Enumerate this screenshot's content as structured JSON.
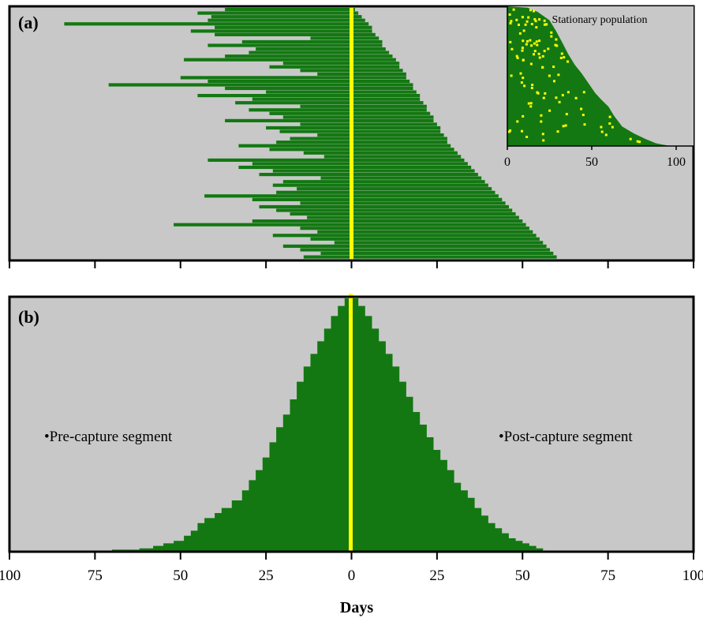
{
  "colors": {
    "panel_bg": "#c8c8c8",
    "fill": "#137812",
    "capture_line": "#ffff00",
    "frame": "#000000",
    "inset_dots": "#ffff00"
  },
  "chart_data": [
    {
      "id": "panel_a",
      "type": "bar",
      "orientation": "horizontal",
      "panel_label": "(a)",
      "description_rows": "each row is one individual; bar extends from pre-capture age (negative) to post-capture survival (positive); rows sorted by post-capture survival",
      "xlim": [
        -100,
        100
      ],
      "capture_line_x": 0,
      "rows": [
        {
          "pre": -37,
          "post": 1
        },
        {
          "pre": -45,
          "post": 2
        },
        {
          "pre": -41,
          "post": 3
        },
        {
          "pre": -42,
          "post": 4
        },
        {
          "pre": -84,
          "post": 5
        },
        {
          "pre": -40,
          "post": 6
        },
        {
          "pre": -47,
          "post": 6
        },
        {
          "pre": -40,
          "post": 7
        },
        {
          "pre": -12,
          "post": 8
        },
        {
          "pre": -32,
          "post": 9
        },
        {
          "pre": -42,
          "post": 9
        },
        {
          "pre": -28,
          "post": 10
        },
        {
          "pre": -30,
          "post": 11
        },
        {
          "pre": -37,
          "post": 12
        },
        {
          "pre": -49,
          "post": 13
        },
        {
          "pre": -20,
          "post": 14
        },
        {
          "pre": -24,
          "post": 14
        },
        {
          "pre": -15,
          "post": 15
        },
        {
          "pre": -10,
          "post": 16
        },
        {
          "pre": -50,
          "post": 16
        },
        {
          "pre": -42,
          "post": 17
        },
        {
          "pre": -71,
          "post": 18
        },
        {
          "pre": -37,
          "post": 18
        },
        {
          "pre": -25,
          "post": 19
        },
        {
          "pre": -45,
          "post": 20
        },
        {
          "pre": -29,
          "post": 20
        },
        {
          "pre": -34,
          "post": 21
        },
        {
          "pre": -15,
          "post": 22
        },
        {
          "pre": -30,
          "post": 22
        },
        {
          "pre": -24,
          "post": 23
        },
        {
          "pre": -20,
          "post": 24
        },
        {
          "pre": -37,
          "post": 24
        },
        {
          "pre": -15,
          "post": 25
        },
        {
          "pre": -25,
          "post": 26
        },
        {
          "pre": -21,
          "post": 26
        },
        {
          "pre": -10,
          "post": 27
        },
        {
          "pre": -18,
          "post": 28
        },
        {
          "pre": -22,
          "post": 28
        },
        {
          "pre": -33,
          "post": 29
        },
        {
          "pre": -24,
          "post": 30
        },
        {
          "pre": -14,
          "post": 31
        },
        {
          "pre": -8,
          "post": 32
        },
        {
          "pre": -42,
          "post": 33
        },
        {
          "pre": -29,
          "post": 34
        },
        {
          "pre": -33,
          "post": 35
        },
        {
          "pre": -23,
          "post": 36
        },
        {
          "pre": -27,
          "post": 37
        },
        {
          "pre": -9,
          "post": 38
        },
        {
          "pre": -20,
          "post": 39
        },
        {
          "pre": -23,
          "post": 40
        },
        {
          "pre": -16,
          "post": 41
        },
        {
          "pre": -22,
          "post": 42
        },
        {
          "pre": -43,
          "post": 43
        },
        {
          "pre": -29,
          "post": 44
        },
        {
          "pre": -15,
          "post": 45
        },
        {
          "pre": -27,
          "post": 46
        },
        {
          "pre": -22,
          "post": 47
        },
        {
          "pre": -18,
          "post": 48
        },
        {
          "pre": -13,
          "post": 49
        },
        {
          "pre": -29,
          "post": 50
        },
        {
          "pre": -52,
          "post": 51
        },
        {
          "pre": -15,
          "post": 52
        },
        {
          "pre": -10,
          "post": 53
        },
        {
          "pre": -23,
          "post": 54
        },
        {
          "pre": -12,
          "post": 55
        },
        {
          "pre": -5,
          "post": 56
        },
        {
          "pre": -20,
          "post": 57
        },
        {
          "pre": -15,
          "post": 58
        },
        {
          "pre": -9,
          "post": 59
        },
        {
          "pre": -14,
          "post": 60
        }
      ],
      "inset": {
        "title": "Stationary population",
        "type": "area",
        "x_ticks": [
          "0",
          "50",
          "100"
        ],
        "xlim": [
          0,
          105
        ],
        "boundary": [
          {
            "x": 0,
            "y": 100
          },
          {
            "x": 12,
            "y": 99
          },
          {
            "x": 18,
            "y": 96
          },
          {
            "x": 25,
            "y": 90
          },
          {
            "x": 29,
            "y": 82
          },
          {
            "x": 33,
            "y": 73
          },
          {
            "x": 36,
            "y": 66
          },
          {
            "x": 40,
            "y": 58
          },
          {
            "x": 44,
            "y": 52
          },
          {
            "x": 48,
            "y": 45
          },
          {
            "x": 52,
            "y": 38
          },
          {
            "x": 55,
            "y": 34
          },
          {
            "x": 60,
            "y": 28
          },
          {
            "x": 63,
            "y": 22
          },
          {
            "x": 68,
            "y": 14
          },
          {
            "x": 75,
            "y": 9
          },
          {
            "x": 82,
            "y": 5
          },
          {
            "x": 88,
            "y": 2
          },
          {
            "x": 92,
            "y": 1
          },
          {
            "x": 97,
            "y": 0
          }
        ]
      }
    },
    {
      "id": "panel_b",
      "type": "area",
      "panel_label": "(b)",
      "xlabel": "Days",
      "xlim": [
        -100,
        100
      ],
      "x_ticks": [
        "100",
        "75",
        "50",
        "25",
        "0",
        "25",
        "50",
        "75",
        "100"
      ],
      "capture_line_x": 0,
      "annotations": {
        "left": "•Pre-capture segment",
        "right": "•Post-capture segment"
      },
      "pre_capture_edge": [
        {
          "x": -2,
          "y": 100
        },
        {
          "x": -4,
          "y": 97
        },
        {
          "x": -6,
          "y": 93
        },
        {
          "x": -8,
          "y": 88
        },
        {
          "x": -10,
          "y": 83
        },
        {
          "x": -12,
          "y": 78
        },
        {
          "x": -14,
          "y": 73
        },
        {
          "x": -16,
          "y": 67
        },
        {
          "x": -18,
          "y": 60
        },
        {
          "x": -20,
          "y": 54
        },
        {
          "x": -22,
          "y": 49
        },
        {
          "x": -24,
          "y": 43
        },
        {
          "x": -26,
          "y": 37
        },
        {
          "x": -28,
          "y": 32
        },
        {
          "x": -30,
          "y": 28
        },
        {
          "x": -32,
          "y": 24
        },
        {
          "x": -35,
          "y": 20
        },
        {
          "x": -38,
          "y": 17
        },
        {
          "x": -40,
          "y": 15
        },
        {
          "x": -43,
          "y": 13
        },
        {
          "x": -45,
          "y": 11
        },
        {
          "x": -47,
          "y": 8
        },
        {
          "x": -49,
          "y": 6
        },
        {
          "x": -52,
          "y": 4
        },
        {
          "x": -55,
          "y": 3
        },
        {
          "x": -58,
          "y": 2
        },
        {
          "x": -62,
          "y": 1
        },
        {
          "x": -70,
          "y": 0.5
        },
        {
          "x": -73,
          "y": 0
        }
      ],
      "post_capture_edge": [
        {
          "x": 2,
          "y": 100
        },
        {
          "x": 4,
          "y": 97
        },
        {
          "x": 6,
          "y": 93
        },
        {
          "x": 8,
          "y": 88
        },
        {
          "x": 10,
          "y": 83
        },
        {
          "x": 12,
          "y": 78
        },
        {
          "x": 14,
          "y": 73
        },
        {
          "x": 16,
          "y": 67
        },
        {
          "x": 18,
          "y": 61
        },
        {
          "x": 20,
          "y": 55
        },
        {
          "x": 22,
          "y": 50
        },
        {
          "x": 24,
          "y": 45
        },
        {
          "x": 26,
          "y": 40
        },
        {
          "x": 28,
          "y": 36
        },
        {
          "x": 30,
          "y": 32
        },
        {
          "x": 32,
          "y": 27
        },
        {
          "x": 34,
          "y": 24
        },
        {
          "x": 36,
          "y": 21
        },
        {
          "x": 38,
          "y": 17
        },
        {
          "x": 40,
          "y": 14
        },
        {
          "x": 42,
          "y": 11
        },
        {
          "x": 44,
          "y": 9
        },
        {
          "x": 46,
          "y": 7
        },
        {
          "x": 48,
          "y": 5
        },
        {
          "x": 50,
          "y": 4
        },
        {
          "x": 52,
          "y": 3
        },
        {
          "x": 54,
          "y": 2
        },
        {
          "x": 56,
          "y": 1
        },
        {
          "x": 59,
          "y": 0
        }
      ]
    }
  ]
}
